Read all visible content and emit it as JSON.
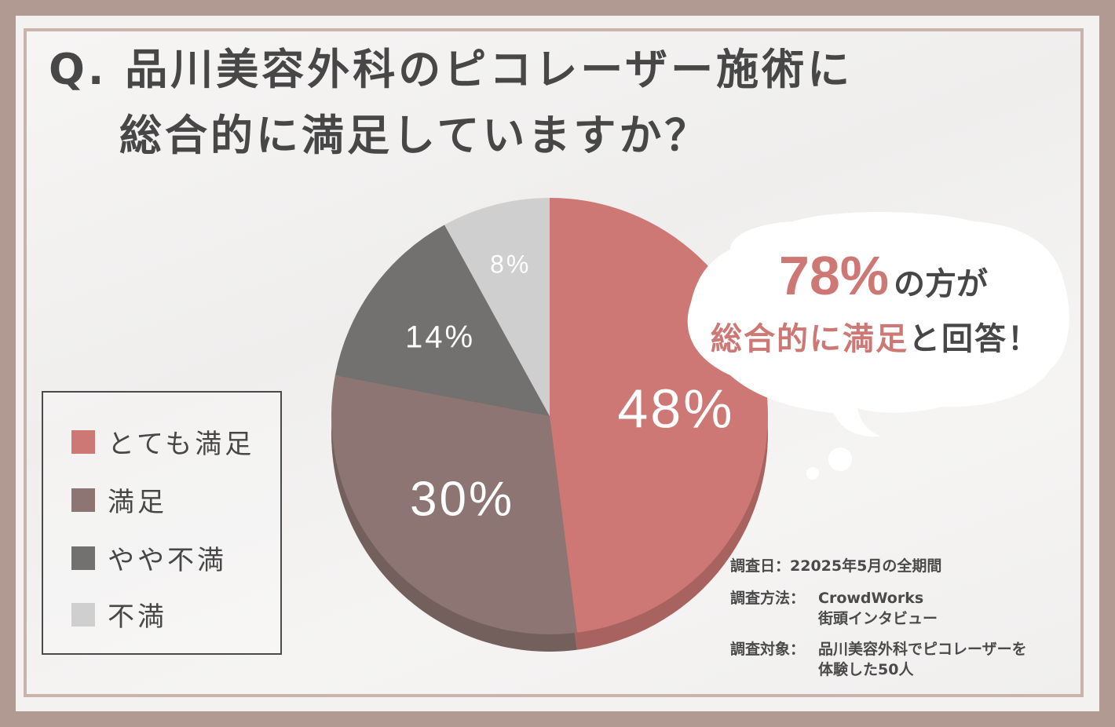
{
  "title": {
    "line1": "Q. 品川美容外科のピコレーザー施術に",
    "line2": "総合的に満足していますか？"
  },
  "bubble": {
    "highlight": "78%",
    "line1_rest": "の方が",
    "line2_highlight": "総合的に満足",
    "line2_rest": "と回答！"
  },
  "meta": {
    "date_label": "調査日：",
    "date_value": "22025年5月の全期間",
    "method_label": "調査方法：",
    "method_value1": "CrowdWorks",
    "method_value2": "街頭インタビュー",
    "target_label": "調査対象：",
    "target_value1": "品川美容外科でピコレーザーを",
    "target_value2": "体験した50人"
  },
  "colors": {
    "very_satisfied": "#cd7874",
    "satisfied": "#8c7572",
    "somewhat_dissatisfied": "#737070",
    "dissatisfied": "#cfcfcf",
    "accent_text": "#cd7874"
  },
  "chart_data": {
    "type": "pie",
    "categories": [
      "とても満足",
      "満足",
      "やや不満",
      "不満"
    ],
    "values": [
      48,
      30,
      14,
      8
    ],
    "labels": [
      "48%",
      "30%",
      "14%",
      "8%"
    ],
    "unit": "%",
    "legend_position": "bottom-left"
  }
}
